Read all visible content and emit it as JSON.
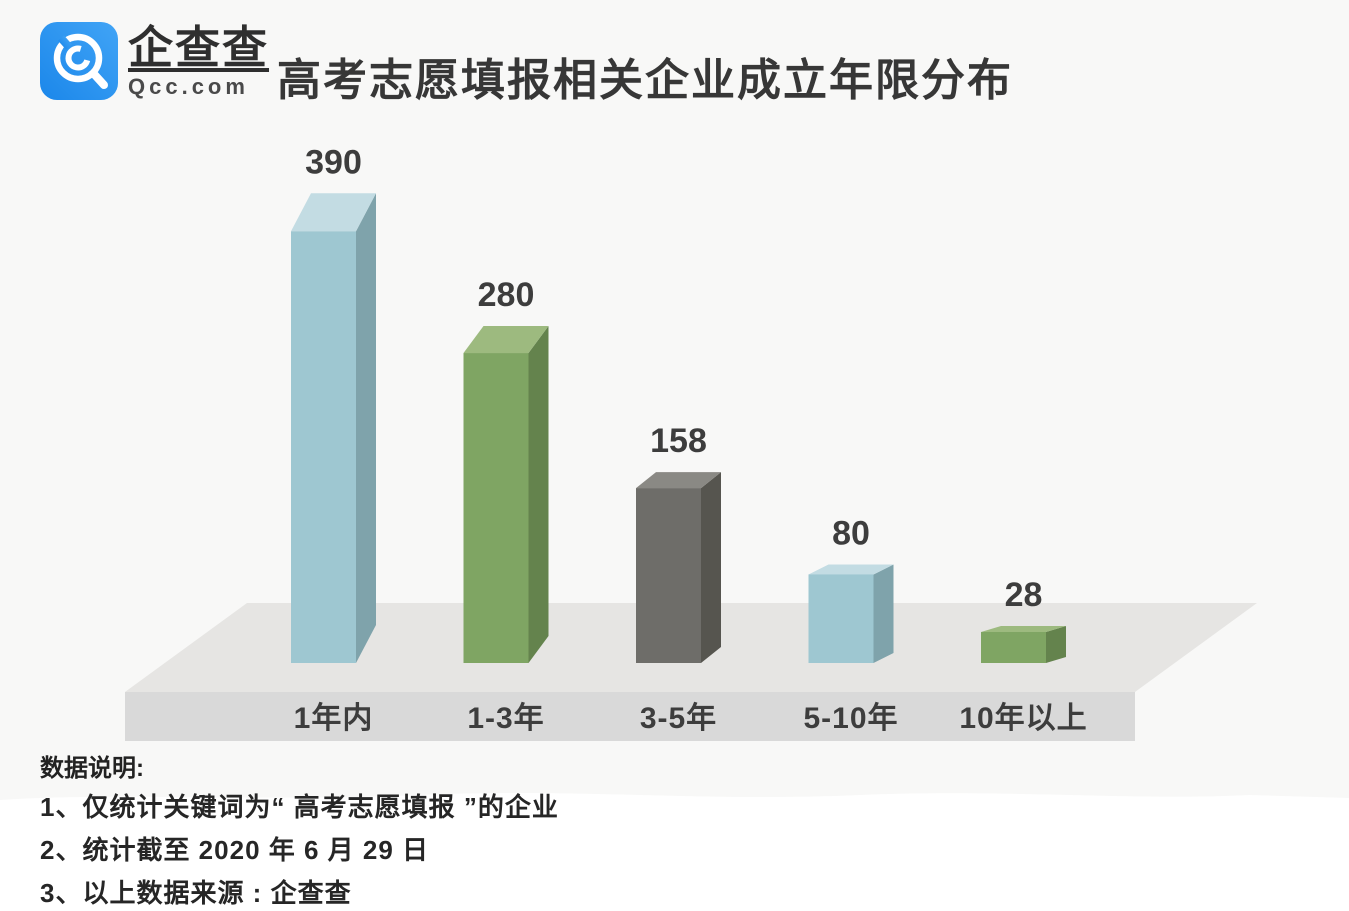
{
  "header": {
    "brand_name": "企查查",
    "brand_domain": "Qcc.com",
    "title": "高考志愿填报相关企业成立年限分布"
  },
  "chart_data": {
    "type": "bar",
    "title": "高考志愿填报相关企业成立年限分布",
    "categories": [
      "1年内",
      "1-3年",
      "3-5年",
      "5-10年",
      "10年以上"
    ],
    "values": [
      390,
      280,
      158,
      80,
      28
    ],
    "xlabel": "",
    "ylabel": "",
    "ylim": [
      0,
      420
    ],
    "grid": false,
    "legend_position": "none",
    "style": "3d-bars-on-3d-floor",
    "value_labels_shown": true,
    "bar_colors": [
      "blue",
      "green",
      "gray",
      "blue",
      "green"
    ],
    "palette": {
      "blue": {
        "front": "#9EC7D1",
        "top": "#C3DCE3",
        "side": "#7FA3AB"
      },
      "green": {
        "front": "#7FA563",
        "top": "#9DBA7F",
        "side": "#64834D"
      },
      "gray": {
        "front": "#6E6D69",
        "top": "#8A8984",
        "side": "#56554F"
      }
    },
    "floor_colors": {
      "top": "#E6E5E3",
      "front": "#D9D9D9"
    },
    "label_color": "#3D3D3D"
  },
  "footer": {
    "heading": "数据说明:",
    "notes": [
      "1、仅统计关键词为“ 高考志愿填报 ”的企业",
      "2、统计截至 2020 年 6 月 29 日",
      "3、以上数据来源 : 企查查"
    ]
  },
  "colors": {
    "brand_blue_light": "#41A4F6",
    "brand_blue_dark": "#1B87EA",
    "background_top": "#F8F8F7",
    "background_bottom": "#FFFFFF",
    "title_text": "#373737",
    "note_text": "#262626"
  }
}
